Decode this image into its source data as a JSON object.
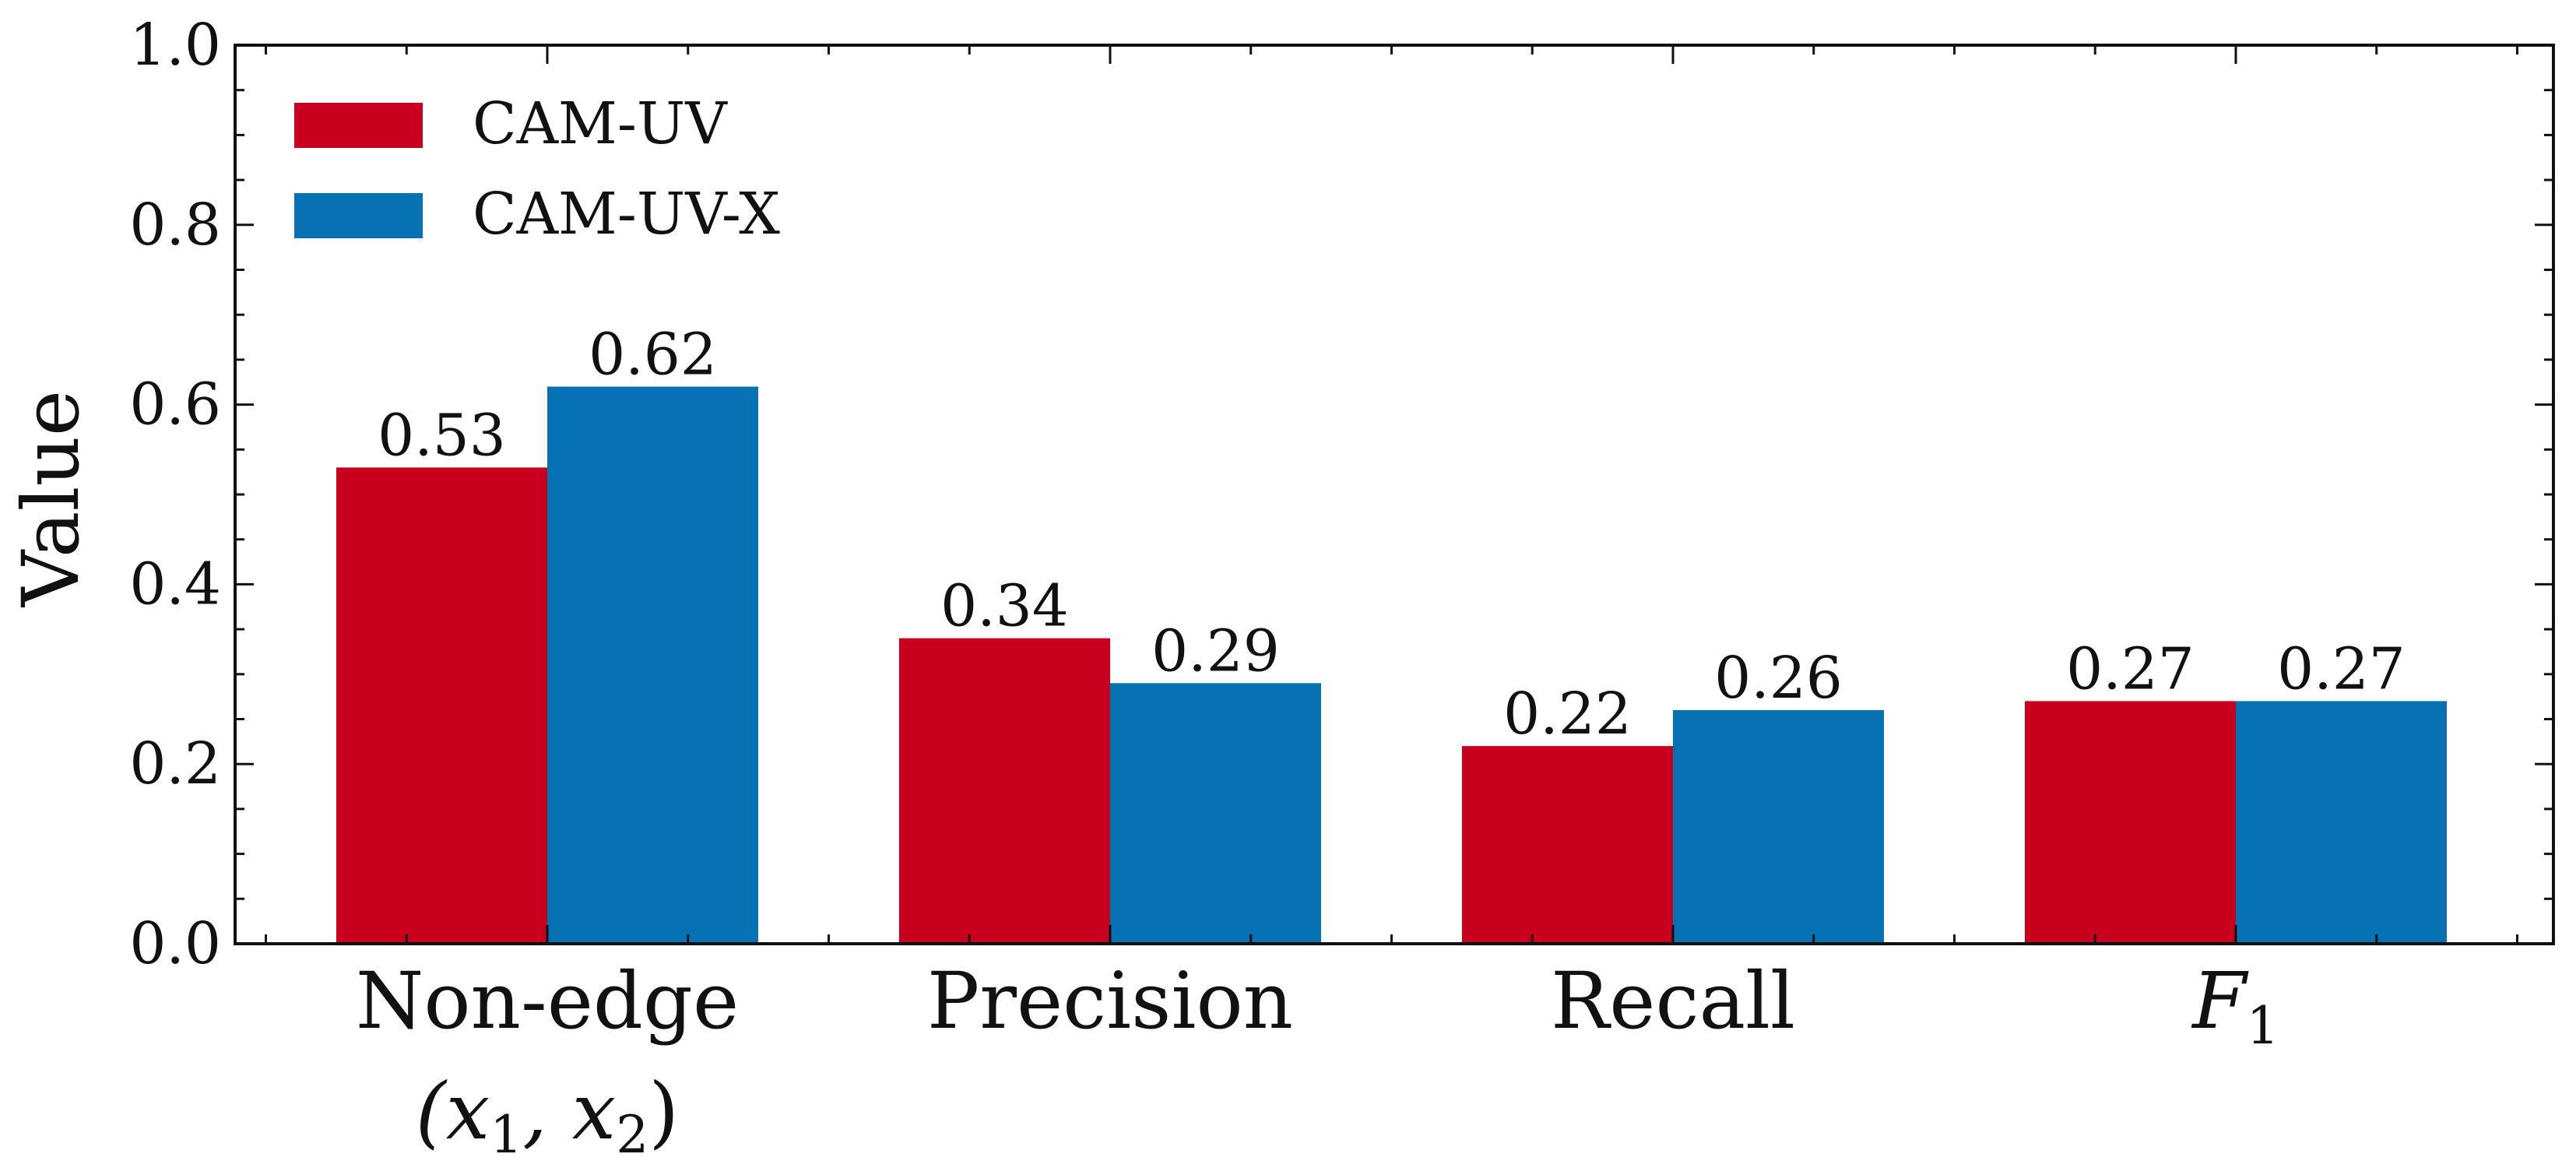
{
  "chart_data": {
    "type": "bar",
    "categories": [
      "Non-edge",
      "Precision",
      "Recall",
      "F"
    ],
    "category_sublabels": [
      "(x",
      ", x",
      ")"
    ],
    "subscript_one": "1",
    "subscript_two": "2",
    "series": [
      {
        "name": "CAM-UV",
        "color": "#c8001e",
        "values": [
          0.53,
          0.34,
          0.22,
          0.27
        ],
        "labels": [
          "0.53",
          "0.34",
          "0.22",
          "0.27"
        ]
      },
      {
        "name": "CAM-UV-X",
        "color": "#0672b4",
        "values": [
          0.62,
          0.29,
          0.26,
          0.27
        ],
        "labels": [
          "0.62",
          "0.29",
          "0.26",
          "0.27"
        ]
      }
    ],
    "ylabel": "Value",
    "xlabel": "",
    "ylim": [
      0,
      1
    ],
    "yticks": [
      0,
      0.2,
      0.4,
      0.6,
      0.8,
      1.0
    ],
    "ytick_labels": [
      "0.0",
      "0.2",
      "0.4",
      "0.6",
      "0.8",
      "1.0"
    ],
    "legend_position": "top-left"
  }
}
